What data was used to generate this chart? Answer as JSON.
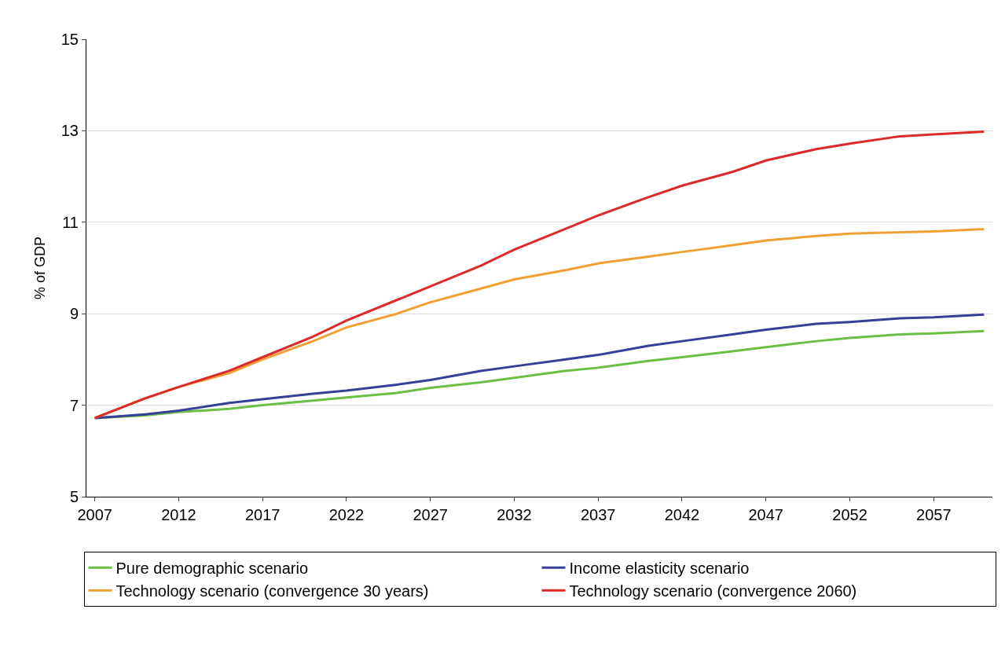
{
  "chart_data": {
    "type": "line",
    "ylabel": "% of GDP",
    "x": [
      2007,
      2010,
      2012,
      2015,
      2017,
      2020,
      2022,
      2025,
      2027,
      2030,
      2032,
      2035,
      2037,
      2040,
      2042,
      2045,
      2047,
      2050,
      2052,
      2055,
      2057,
      2060
    ],
    "series": [
      {
        "name": "Pure demographic scenario",
        "color": "#6cbf45",
        "values": [
          6.72,
          6.78,
          6.85,
          6.92,
          7.0,
          7.1,
          7.17,
          7.27,
          7.38,
          7.5,
          7.6,
          7.75,
          7.82,
          7.97,
          8.05,
          8.18,
          8.27,
          8.4,
          8.47,
          8.55,
          8.57,
          8.62
        ]
      },
      {
        "name": "Income elasticity scenario",
        "color": "#353f97",
        "values": [
          6.72,
          6.8,
          6.88,
          7.05,
          7.13,
          7.25,
          7.32,
          7.45,
          7.55,
          7.75,
          7.85,
          8.0,
          8.1,
          8.3,
          8.4,
          8.55,
          8.65,
          8.78,
          8.82,
          8.9,
          8.92,
          8.98
        ]
      },
      {
        "name": "Technology scenario (convergence 30 years)",
        "color": "#f0a032",
        "values": [
          6.72,
          7.15,
          7.4,
          7.7,
          8.0,
          8.4,
          8.7,
          9.0,
          9.25,
          9.55,
          9.75,
          9.95,
          10.1,
          10.25,
          10.35,
          10.5,
          10.6,
          10.7,
          10.75,
          10.78,
          10.8,
          10.85
        ]
      },
      {
        "name": "Technology scenario (convergence 2060)",
        "color": "#dc2a2a",
        "values": [
          6.72,
          7.15,
          7.4,
          7.75,
          8.05,
          8.5,
          8.85,
          9.3,
          9.6,
          10.05,
          10.4,
          10.85,
          11.15,
          11.55,
          11.8,
          12.1,
          12.35,
          12.6,
          12.72,
          12.88,
          12.92,
          12.98
        ]
      }
    ],
    "xlim": [
      2006.5,
      2060.5
    ],
    "xticks": [
      2007,
      2012,
      2017,
      2022,
      2027,
      2032,
      2037,
      2042,
      2047,
      2052,
      2057
    ],
    "ylim": [
      5,
      15
    ],
    "yticks": [
      5,
      7,
      9,
      11,
      13,
      15
    ],
    "grid": "y",
    "legend": "bottom",
    "marker": "none",
    "line_style": "solid"
  }
}
